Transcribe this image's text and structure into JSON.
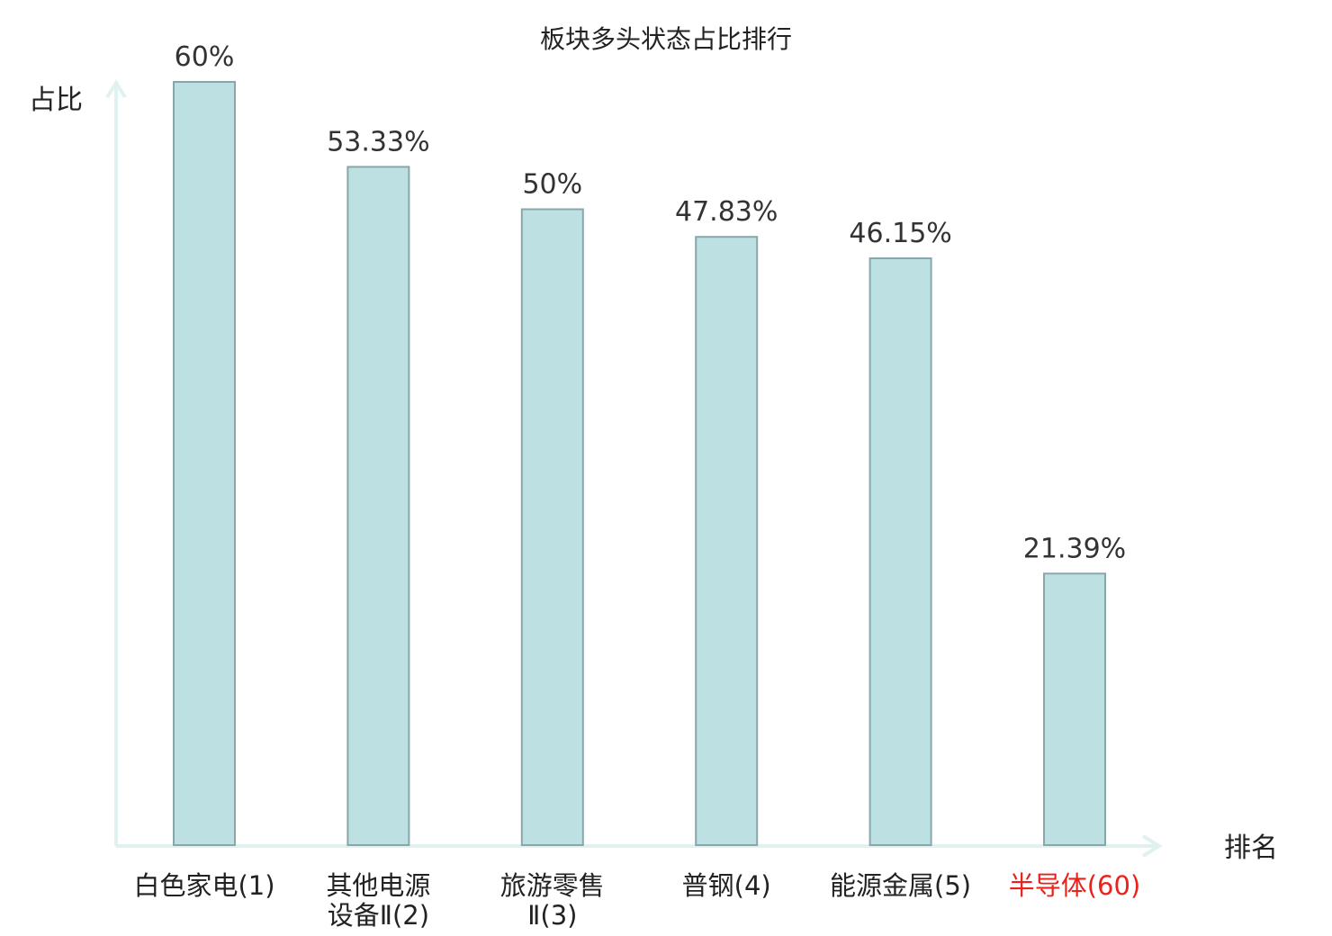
{
  "chart_data": {
    "type": "bar",
    "title": "板块多头状态占比排行",
    "ylabel": "占比",
    "xlabel": "排名",
    "ylim": [
      0,
      60
    ],
    "grid": false,
    "unit": "%",
    "categories": [
      {
        "lines": [
          {
            "name": "白色家电",
            "rank": "(1)"
          }
        ],
        "highlight": false
      },
      {
        "lines": [
          {
            "name": "其他电源",
            "rank": ""
          },
          {
            "name": "设备Ⅱ",
            "rank": "(2)"
          }
        ],
        "highlight": false
      },
      {
        "lines": [
          {
            "name": "旅游零售",
            "rank": ""
          },
          {
            "name": "Ⅱ",
            "rank": "(3)"
          }
        ],
        "highlight": false
      },
      {
        "lines": [
          {
            "name": "普钢",
            "rank": "(4)"
          }
        ],
        "highlight": false
      },
      {
        "lines": [
          {
            "name": "能源金属",
            "rank": "(5)"
          }
        ],
        "highlight": false
      },
      {
        "lines": [
          {
            "name": "半导体",
            "rank": "(60)"
          }
        ],
        "highlight": true
      }
    ],
    "values": [
      60,
      53.33,
      50,
      47.83,
      46.15,
      21.39
    ],
    "value_labels": [
      "60%",
      "53.33%",
      "50%",
      "47.83%",
      "46.15%",
      "21.39%"
    ],
    "colors": {
      "bar_fill": "#bde0e2",
      "bar_stroke": "#8aa6aa",
      "axis": "#e0f2ef",
      "highlight_text": "#e8231b",
      "text": "#222222"
    }
  }
}
